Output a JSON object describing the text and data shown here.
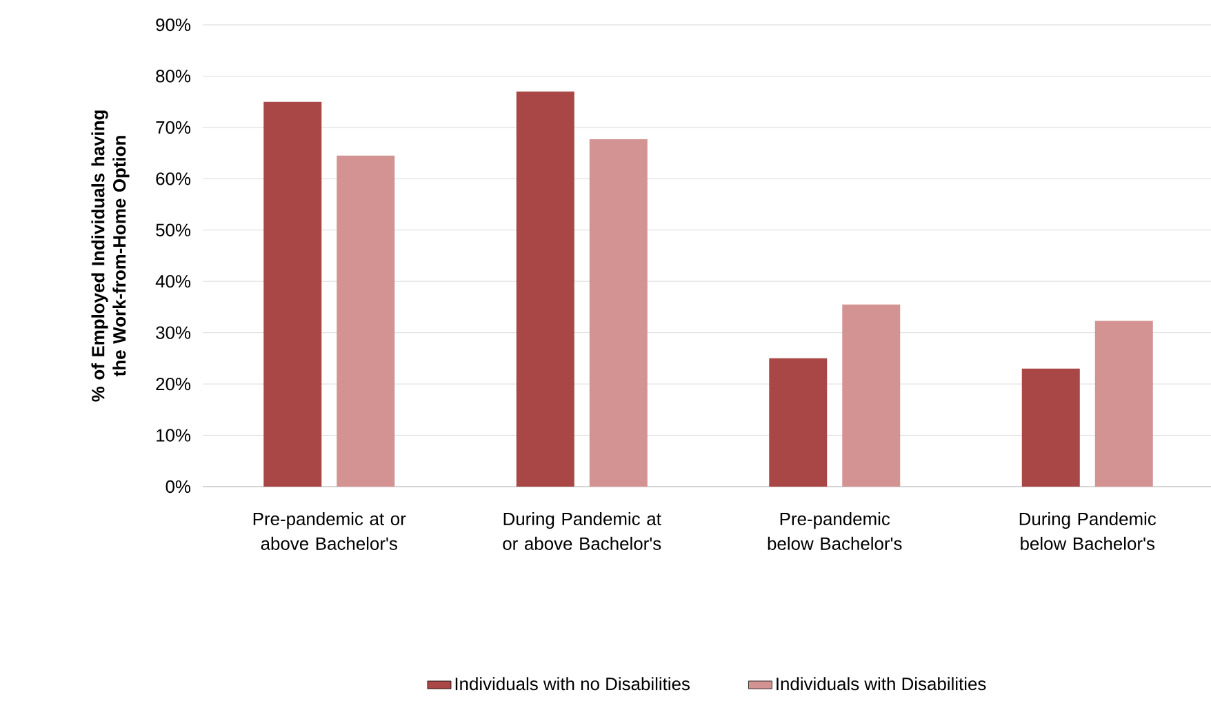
{
  "chart_data": {
    "type": "bar",
    "ylabel": "% of Employed Individuals having the Work-from-Home Option",
    "categories": [
      "Pre-pandemic at or above Bachelor's",
      "During Pandemic at or above Bachelor's",
      "Pre-pandemic below Bachelor's",
      "During Pandemic below Bachelor's"
    ],
    "series": [
      {
        "name": "Individuals with no Disabilities",
        "color": "#a84745",
        "values": [
          75,
          77,
          25,
          23
        ]
      },
      {
        "name": "Individuals with Disabilities",
        "color": "#d49393",
        "values": [
          64.5,
          67.7,
          35.5,
          32.3
        ]
      }
    ],
    "ylim": [
      0,
      90
    ],
    "yticks": [
      {
        "value": 0,
        "label": "0%"
      },
      {
        "value": 10,
        "label": "10%"
      },
      {
        "value": 20,
        "label": "20%"
      },
      {
        "value": 30,
        "label": "30%"
      },
      {
        "value": 40,
        "label": "40%"
      },
      {
        "value": 50,
        "label": "50%"
      },
      {
        "value": 60,
        "label": "60%"
      },
      {
        "value": 70,
        "label": "70%"
      },
      {
        "value": 80,
        "label": "80%"
      },
      {
        "value": 90,
        "label": "90%"
      }
    ],
    "grid": "y",
    "legend": "bottom"
  }
}
